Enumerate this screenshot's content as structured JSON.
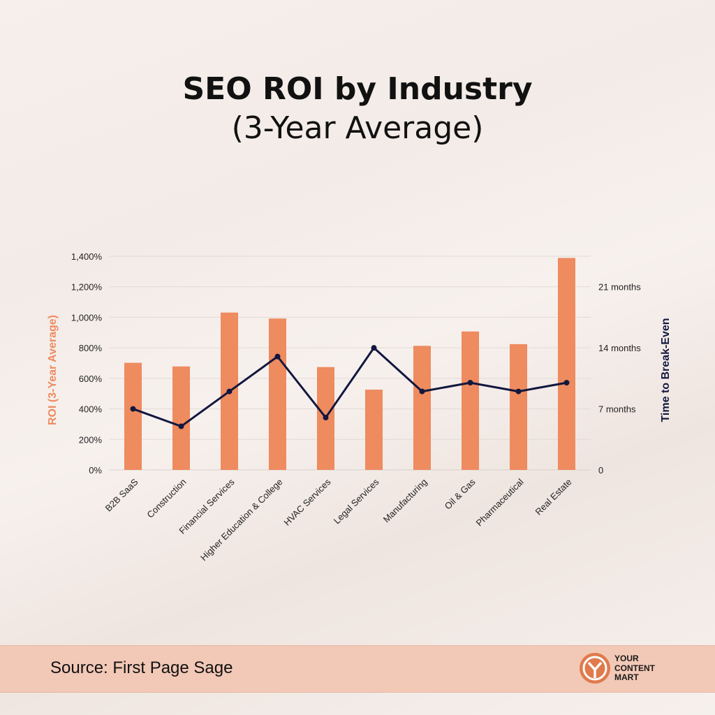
{
  "title_line1": "SEO ROI by Industry",
  "title_line2": "(3-Year Average)",
  "footer": {
    "source": "Source: First Page Sage",
    "logo_line1": "YOUR",
    "logo_line2": "CONTENT",
    "logo_line3": "MART"
  },
  "colors": {
    "bar": "#ee8b5f",
    "line": "#12173f",
    "left_axis_label": "#ee8b5f",
    "right_axis_label": "#12173f",
    "logo": "#e07a4c"
  },
  "chart_data": {
    "type": "bar",
    "categories": [
      "B2B SaaS",
      "Construction",
      "Financial Services",
      "Higher Education & College",
      "HVAC Services",
      "Legal Services",
      "Manufacturing",
      "Oil & Gas",
      "Pharmaceutical",
      "Real Estate"
    ],
    "series": [
      {
        "name": "ROI (3-Year Average)",
        "type": "bar",
        "axis": "left",
        "values": [
          702,
          678,
          1031,
          992,
          674,
          526,
          813,
          907,
          824,
          1389
        ]
      },
      {
        "name": "Time to Break-Even",
        "type": "line",
        "axis": "right",
        "values": [
          7,
          5,
          9,
          13,
          6,
          14,
          9,
          10,
          9,
          10
        ]
      }
    ],
    "ylabel": "ROI (3-Year Average)",
    "ylim": [
      0,
      1400
    ],
    "yticks": [
      "0%",
      "200%",
      "400%",
      "600%",
      "800%",
      "1,000%",
      "1,200%",
      "1,400%"
    ],
    "y2label": "Time to Break-Even",
    "y2lim": [
      0,
      24.5
    ],
    "y2ticks": [
      {
        "value": 0,
        "label": "0"
      },
      {
        "value": 7,
        "label": "7 months"
      },
      {
        "value": 14,
        "label": "14 months"
      },
      {
        "value": 21,
        "label": "21 months"
      }
    ],
    "grid": true,
    "legend": "none"
  }
}
